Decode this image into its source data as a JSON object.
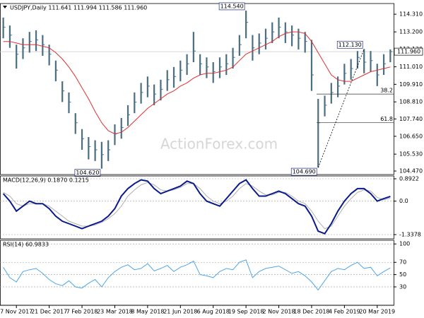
{
  "chart_data": [
    {
      "type": "ohlc",
      "title": "USDJPY,Daily  111.641 111.994 111.586 111.960",
      "watermark": "ActionForex.com",
      "categories": [
        null,
        null,
        "7 Nov 2017",
        null,
        null,
        null,
        null,
        "21 Dec 2017",
        null,
        null,
        null,
        null,
        "7 Feb 2018",
        null,
        null,
        null,
        null,
        "23 Mar 2018",
        null,
        null,
        null,
        null,
        "8 May 2018",
        null,
        null,
        null,
        null,
        "21 Jun 2018",
        null,
        null,
        null,
        null,
        "6 Aug 2018",
        null,
        null,
        null,
        null,
        "19 Sep 2018",
        null,
        null,
        null,
        null,
        "2 Nov 2018",
        null,
        null,
        null,
        null,
        "18 Dec 2018",
        null,
        null,
        null,
        null,
        "4 Feb 2019",
        null,
        null,
        null,
        null,
        "20 Mar 2019",
        null,
        null
      ],
      "color": "#4a6e82",
      "high": [
        114.1,
        113.6,
        112.4,
        112.8,
        113.2,
        113.3,
        113.0,
        112.4,
        111.4,
        110.1,
        109.4,
        108.1,
        107.1,
        106.6,
        106.4,
        106.3,
        106.4,
        107.4,
        107.8,
        108.6,
        109.4,
        110.0,
        110.4,
        109.9,
        110.2,
        110.8,
        111.0,
        111.4,
        111.8,
        113.2,
        111.8,
        111.6,
        111.3,
        111.6,
        111.8,
        112.2,
        113.0,
        114.54,
        113.0,
        113.1,
        113.4,
        113.8,
        114.1,
        113.8,
        113.6,
        113.4,
        113.2,
        112.7,
        109.0,
        109.2,
        110.0,
        110.4,
        111.2,
        111.5,
        112.0,
        112.13,
        112.0,
        111.2,
        111.8,
        112.1
      ],
      "low": [
        112.8,
        112.2,
        110.9,
        111.5,
        111.9,
        112.0,
        111.7,
        111.1,
        110.1,
        108.8,
        108.1,
        106.8,
        105.8,
        105.2,
        105.1,
        104.62,
        105.1,
        106.1,
        106.5,
        107.3,
        108.1,
        108.7,
        109.1,
        108.6,
        108.9,
        109.5,
        109.7,
        110.1,
        110.5,
        111.3,
        110.5,
        110.3,
        110.0,
        110.3,
        110.5,
        110.9,
        111.7,
        112.8,
        111.4,
        111.8,
        112.1,
        112.5,
        112.8,
        112.5,
        112.3,
        112.1,
        111.9,
        109.5,
        104.69,
        107.9,
        108.7,
        109.1,
        109.9,
        110.2,
        110.9,
        110.6,
        110.7,
        109.8,
        110.5,
        111.3
      ],
      "close": [
        113.5,
        113.0,
        111.8,
        112.2,
        112.6,
        112.7,
        112.4,
        111.8,
        110.8,
        109.5,
        108.8,
        107.5,
        106.5,
        106.0,
        105.8,
        105.5,
        105.8,
        106.8,
        107.2,
        108.0,
        108.8,
        109.4,
        109.8,
        109.3,
        109.6,
        110.2,
        110.4,
        110.8,
        111.2,
        112.0,
        111.2,
        111.0,
        110.7,
        111.0,
        111.2,
        111.6,
        112.4,
        113.8,
        112.2,
        112.5,
        112.8,
        113.2,
        113.5,
        113.2,
        113.0,
        112.8,
        112.6,
        110.5,
        107.5,
        108.6,
        109.4,
        109.8,
        110.6,
        110.9,
        111.6,
        111.3,
        111.4,
        110.5,
        111.2,
        111.96
      ],
      "ma": {
        "color": "#e03030",
        "values": [
          112.6,
          112.6,
          112.5,
          112.4,
          112.4,
          112.4,
          112.3,
          112.2,
          111.9,
          111.5,
          111.0,
          110.4,
          109.7,
          109.0,
          108.2,
          107.5,
          107.0,
          106.8,
          106.9,
          107.2,
          107.6,
          108.0,
          108.4,
          108.7,
          109.0,
          109.3,
          109.5,
          109.8,
          110.0,
          110.3,
          110.5,
          110.6,
          110.6,
          110.7,
          110.8,
          111.0,
          111.4,
          111.8,
          112.0,
          112.2,
          112.4,
          112.6,
          112.9,
          113.1,
          113.2,
          113.2,
          113.1,
          112.6,
          111.9,
          111.2,
          110.5,
          110.2,
          110.1,
          110.1,
          110.3,
          110.5,
          110.7,
          110.8,
          110.9,
          111.0
        ]
      },
      "price_labels": [
        "114.540",
        "112.130",
        "104.620",
        "104.690"
      ],
      "fib_levels": [
        {
          "label": "38.2",
          "value": 109.3
        },
        {
          "label": "61.8",
          "value": 107.5
        }
      ],
      "last_price": {
        "value": 111.96,
        "label": "111.960"
      },
      "ylim": [
        104.25,
        114.98
      ],
      "yticks": [
        {
          "value": 114.31,
          "label": "114.310"
        },
        {
          "value": 113.2,
          "label": "113.200"
        },
        {
          "value": 112.13,
          "label": "112.130"
        },
        {
          "value": 111.01,
          "label": "111.010"
        },
        {
          "value": 109.91,
          "label": "109.910"
        },
        {
          "value": 108.81,
          "label": "108.810"
        },
        {
          "value": 107.74,
          "label": "107.740"
        },
        {
          "value": 106.65,
          "label": "106.650"
        },
        {
          "value": 105.53,
          "label": "105.530"
        },
        {
          "value": 104.47,
          "label": "104.470"
        }
      ]
    },
    {
      "type": "macd",
      "title": "MACD(12,26,9) 0.1870 0.1215",
      "series": [
        {
          "name": "MACD",
          "color": "#0a1a8a",
          "values": [
            0.3,
            0.0,
            -0.4,
            -0.2,
            0.0,
            -0.1,
            -0.1,
            -0.3,
            -0.6,
            -0.8,
            -0.9,
            -1.0,
            -1.1,
            -1.0,
            -0.9,
            -0.8,
            -0.6,
            -0.3,
            0.2,
            0.5,
            0.7,
            0.85,
            0.8,
            0.5,
            0.3,
            0.4,
            0.5,
            0.6,
            0.8,
            0.7,
            0.3,
            0.0,
            -0.1,
            -0.2,
            0.1,
            0.4,
            0.7,
            0.85,
            0.5,
            0.2,
            0.2,
            0.3,
            0.4,
            0.3,
            0.1,
            -0.1,
            -0.2,
            -0.6,
            -1.2,
            -1.3,
            -0.9,
            -0.4,
            0.0,
            0.3,
            0.5,
            0.5,
            0.3,
            0.0,
            0.1,
            0.187
          ]
        },
        {
          "name": "Signal",
          "color": "#b0b0b0",
          "values": [
            0.35,
            0.2,
            -0.1,
            -0.2,
            -0.1,
            -0.1,
            -0.1,
            -0.2,
            -0.4,
            -0.6,
            -0.8,
            -0.9,
            -1.0,
            -1.0,
            -0.95,
            -0.85,
            -0.7,
            -0.5,
            -0.2,
            0.2,
            0.45,
            0.65,
            0.75,
            0.65,
            0.45,
            0.4,
            0.45,
            0.55,
            0.7,
            0.7,
            0.5,
            0.2,
            0.0,
            -0.1,
            0.0,
            0.2,
            0.5,
            0.7,
            0.6,
            0.4,
            0.25,
            0.25,
            0.35,
            0.35,
            0.2,
            0.0,
            -0.1,
            -0.4,
            -0.8,
            -1.1,
            -1.0,
            -0.6,
            -0.2,
            0.1,
            0.35,
            0.45,
            0.4,
            0.15,
            0.05,
            0.1215
          ]
        }
      ],
      "ylim": [
        -1.507,
        1.005
      ],
      "yticks": [
        0.8922,
        {
          "value": 0,
          "label": "0.0"
        },
        -1.3378
      ]
    },
    {
      "type": "rsi",
      "title": "RSI(14) 60.9833",
      "series": [
        {
          "name": "RSI",
          "color": "#4da6e8",
          "values": [
            62,
            45,
            38,
            55,
            58,
            60,
            52,
            42,
            35,
            32,
            40,
            30,
            28,
            36,
            42,
            30,
            45,
            55,
            62,
            66,
            58,
            60,
            68,
            56,
            60,
            65,
            55,
            62,
            66,
            72,
            50,
            48,
            45,
            55,
            60,
            58,
            70,
            74,
            45,
            55,
            60,
            62,
            64,
            58,
            52,
            55,
            48,
            38,
            25,
            40,
            55,
            60,
            58,
            65,
            70,
            60,
            62,
            48,
            55,
            60.98
          ]
        }
      ],
      "ylim": [
        0,
        106
      ],
      "yticks": [
        100,
        70,
        50,
        30
      ]
    }
  ]
}
